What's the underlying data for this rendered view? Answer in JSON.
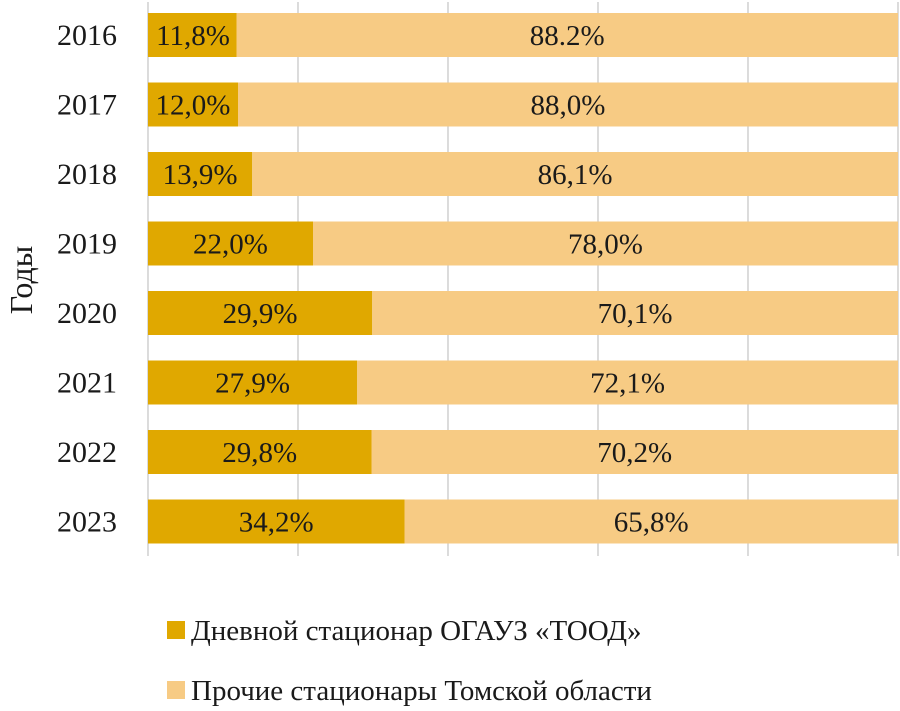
{
  "chart_data": {
    "type": "bar",
    "orientation": "horizontal",
    "stacked": true,
    "percent": true,
    "categories": [
      "2016",
      "2017",
      "2018",
      "2019",
      "2020",
      "2021",
      "2022",
      "2023"
    ],
    "series": [
      {
        "name": "Дневной стационар ОГАУЗ «ТООД»",
        "values": [
          11.8,
          12.0,
          13.9,
          22.0,
          29.9,
          27.9,
          29.8,
          34.2
        ],
        "labels": [
          "11,8%",
          "12,0%",
          "13,9%",
          "22,0%",
          "29,9%",
          "27,9%",
          "29,8%",
          "34,2%"
        ],
        "color": "#E0A800"
      },
      {
        "name": "Прочие стационары Томской области",
        "values": [
          88.2,
          88.0,
          86.1,
          78.0,
          70.1,
          72.1,
          70.2,
          65.8
        ],
        "labels": [
          "88.2%",
          "88,0%",
          "86,1%",
          "78,0%",
          "70,1%",
          "72,1%",
          "70,2%",
          "65,8%"
        ],
        "color": "#F7CB84"
      }
    ],
    "ylabel": "Годы",
    "xlabel": "",
    "xlim": [
      0,
      100
    ],
    "grid": "vertical",
    "legend_position": "bottom"
  }
}
